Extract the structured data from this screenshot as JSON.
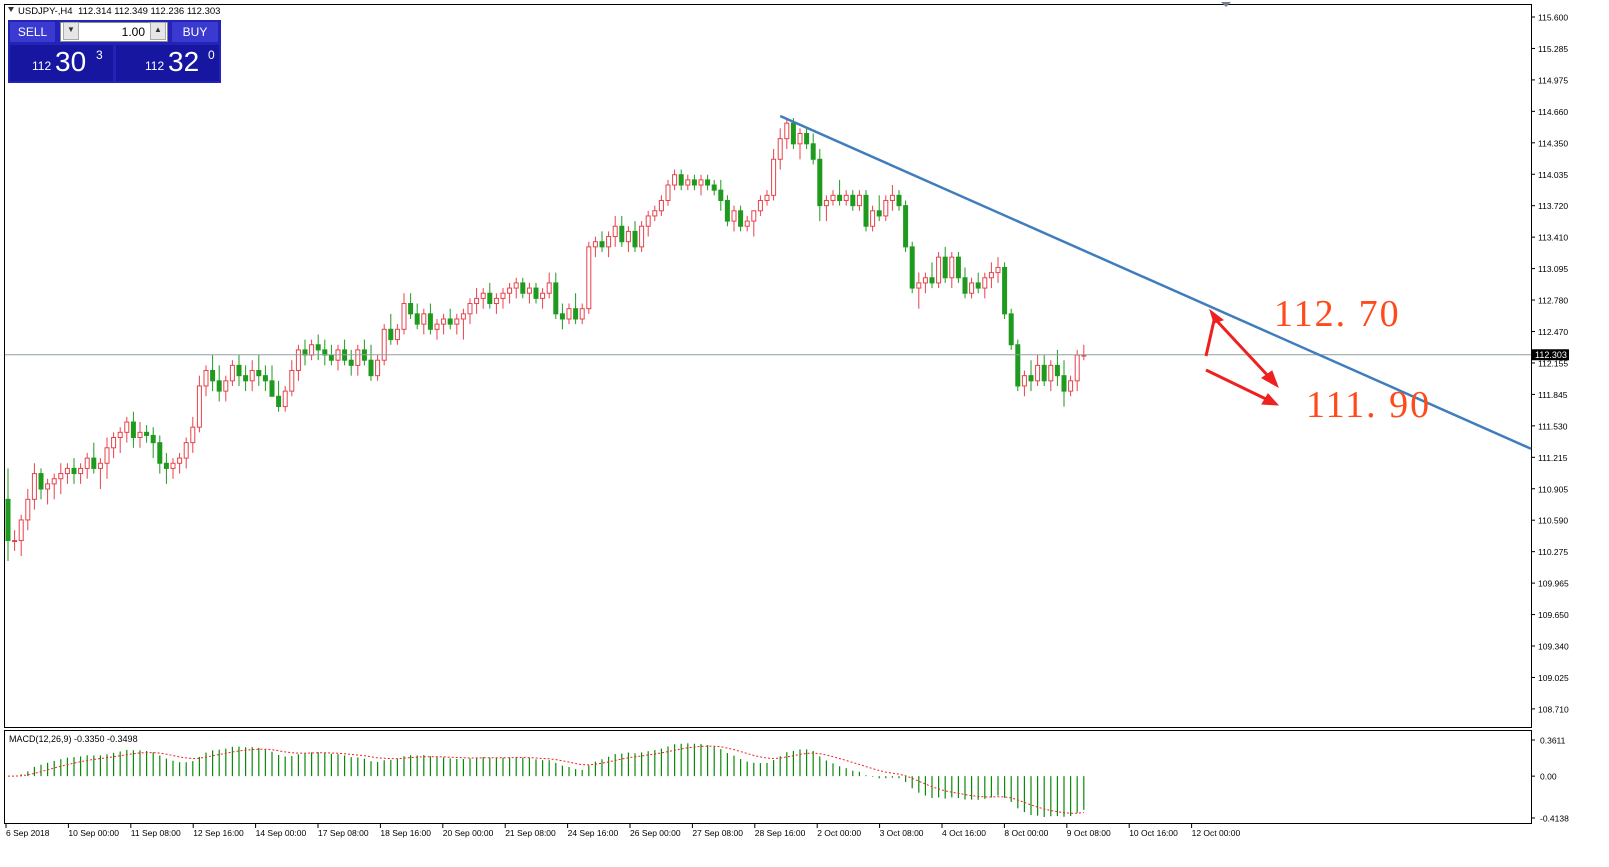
{
  "window": {
    "title": "USDJPY-,H4",
    "ohlc": "112.314 112.349 112.236 112.303"
  },
  "trade_panel": {
    "sell_label": "SELL",
    "buy_label": "BUY",
    "lot": "1.00",
    "sell_big": "112",
    "sell_pips": "30",
    "sell_sup": "3",
    "buy_big": "112",
    "buy_pips": "32",
    "buy_sup": "0"
  },
  "price_axis": {
    "labels": [
      "115.600",
      "115.285",
      "114.975",
      "114.660",
      "114.350",
      "114.035",
      "113.720",
      "113.410",
      "113.095",
      "112.780",
      "112.470",
      "112.155",
      "111.845",
      "111.530",
      "111.215",
      "110.905",
      "110.590",
      "110.275",
      "109.965",
      "109.650",
      "109.340",
      "109.025",
      "108.710"
    ],
    "current_price": "112.303"
  },
  "time_axis": {
    "labels": [
      "6 Sep 2018",
      "10 Sep 00:00",
      "11 Sep 08:00",
      "12 Sep 16:00",
      "14 Sep 00:00",
      "17 Sep 08:00",
      "18 Sep 16:00",
      "20 Sep 00:00",
      "21 Sep 08:00",
      "24 Sep 16:00",
      "26 Sep 00:00",
      "27 Sep 08:00",
      "28 Sep 16:00",
      "2 Oct 00:00",
      "3 Oct 08:00",
      "4 Oct 16:00",
      "8 Oct 00:00",
      "9 Oct 08:00",
      "10 Oct 16:00",
      "12 Oct 00:00"
    ]
  },
  "macd": {
    "label": "MACD(12,26,9) -0.3350 -0.3498",
    "axis_labels": [
      "0.3611",
      "0.00",
      "-0.4138"
    ]
  },
  "annotations": {
    "target_high": "112. 70",
    "target_low": "111. 90"
  },
  "colors": {
    "bull": "#e8414b",
    "bear": "#1e9a1e",
    "trendline": "#3f7dbd",
    "annotation": "#ff4a1a",
    "arrow": "#ee2020"
  },
  "chart_data": {
    "type": "candlestick",
    "symbol": "USDJPY-",
    "timeframe": "H4",
    "ylim": [
      108.71,
      115.6
    ],
    "candles": [
      [
        110.9,
        111.2,
        110.3,
        110.5
      ],
      [
        110.5,
        110.6,
        110.4,
        110.5
      ],
      [
        110.5,
        110.75,
        110.35,
        110.7
      ],
      [
        110.7,
        111.0,
        110.6,
        110.9
      ],
      [
        110.9,
        111.25,
        110.8,
        111.15
      ],
      [
        111.15,
        111.2,
        110.9,
        111.0
      ],
      [
        111.0,
        111.1,
        110.85,
        111.05
      ],
      [
        111.05,
        111.15,
        110.9,
        111.1
      ],
      [
        111.1,
        111.25,
        110.95,
        111.15
      ],
      [
        111.15,
        111.25,
        111.05,
        111.2
      ],
      [
        111.2,
        111.3,
        111.05,
        111.15
      ],
      [
        111.15,
        111.25,
        111.05,
        111.2
      ],
      [
        111.2,
        111.35,
        111.1,
        111.3
      ],
      [
        111.3,
        111.45,
        111.15,
        111.2
      ],
      [
        111.2,
        111.3,
        111.0,
        111.25
      ],
      [
        111.25,
        111.5,
        111.1,
        111.4
      ],
      [
        111.4,
        111.55,
        111.3,
        111.5
      ],
      [
        111.5,
        111.6,
        111.35,
        111.55
      ],
      [
        111.55,
        111.7,
        111.45,
        111.65
      ],
      [
        111.65,
        111.75,
        111.4,
        111.5
      ],
      [
        111.5,
        111.65,
        111.4,
        111.55
      ],
      [
        111.55,
        111.62,
        111.45,
        111.52
      ],
      [
        111.52,
        111.6,
        111.3,
        111.45
      ],
      [
        111.45,
        111.52,
        111.15,
        111.25
      ],
      [
        111.25,
        111.35,
        111.05,
        111.2
      ],
      [
        111.2,
        111.3,
        111.1,
        111.25
      ],
      [
        111.25,
        111.35,
        111.15,
        111.3
      ],
      [
        111.3,
        111.5,
        111.2,
        111.45
      ],
      [
        111.45,
        111.7,
        111.35,
        111.6
      ],
      [
        111.6,
        112.1,
        111.55,
        112.0
      ],
      [
        112.0,
        112.2,
        111.9,
        112.15
      ],
      [
        112.15,
        112.3,
        111.95,
        112.05
      ],
      [
        112.05,
        112.2,
        111.85,
        111.95
      ],
      [
        111.95,
        112.1,
        111.85,
        112.05
      ],
      [
        112.05,
        112.25,
        112.0,
        112.2
      ],
      [
        112.2,
        112.3,
        112.0,
        112.1
      ],
      [
        112.1,
        112.2,
        111.95,
        112.05
      ],
      [
        112.05,
        112.25,
        111.95,
        112.15
      ],
      [
        112.15,
        112.3,
        112.0,
        112.1
      ],
      [
        112.1,
        112.2,
        111.95,
        112.05
      ],
      [
        112.05,
        112.2,
        111.9,
        111.9
      ],
      [
        111.9,
        112.05,
        111.75,
        111.8
      ],
      [
        111.8,
        112.0,
        111.75,
        111.95
      ],
      [
        111.95,
        112.25,
        111.9,
        112.15
      ],
      [
        112.15,
        112.4,
        112.05,
        112.35
      ],
      [
        112.35,
        112.45,
        112.2,
        112.3
      ],
      [
        112.3,
        112.45,
        112.25,
        112.4
      ],
      [
        112.4,
        112.5,
        112.25,
        112.35
      ],
      [
        112.35,
        112.45,
        112.2,
        112.3
      ],
      [
        112.3,
        112.4,
        112.2,
        112.25
      ],
      [
        112.25,
        112.4,
        112.15,
        112.35
      ],
      [
        112.35,
        112.45,
        112.2,
        112.25
      ],
      [
        112.25,
        112.35,
        112.1,
        112.2
      ],
      [
        112.2,
        112.4,
        112.1,
        112.35
      ],
      [
        112.35,
        112.45,
        112.2,
        112.25
      ],
      [
        112.25,
        112.4,
        112.05,
        112.1
      ],
      [
        112.1,
        112.3,
        112.05,
        112.25
      ],
      [
        112.25,
        112.6,
        112.2,
        112.55
      ],
      [
        112.55,
        112.7,
        112.4,
        112.45
      ],
      [
        112.45,
        112.6,
        112.4,
        112.55
      ],
      [
        112.55,
        112.9,
        112.5,
        112.8
      ],
      [
        112.8,
        112.9,
        112.65,
        112.7
      ],
      [
        112.7,
        112.8,
        112.55,
        112.6
      ],
      [
        112.6,
        112.75,
        112.5,
        112.7
      ],
      [
        112.7,
        112.8,
        112.5,
        112.55
      ],
      [
        112.55,
        112.65,
        112.45,
        112.6
      ],
      [
        112.6,
        112.7,
        112.5,
        112.65
      ],
      [
        112.65,
        112.75,
        112.55,
        112.6
      ],
      [
        112.6,
        112.7,
        112.5,
        112.65
      ],
      [
        112.65,
        112.75,
        112.45,
        112.7
      ],
      [
        112.7,
        112.85,
        112.6,
        112.8
      ],
      [
        112.8,
        112.95,
        112.7,
        112.85
      ],
      [
        112.85,
        112.95,
        112.75,
        112.9
      ],
      [
        112.9,
        113.0,
        112.75,
        112.8
      ],
      [
        112.8,
        112.9,
        112.7,
        112.85
      ],
      [
        112.85,
        112.95,
        112.75,
        112.9
      ],
      [
        112.9,
        113.0,
        112.8,
        112.95
      ],
      [
        112.95,
        113.05,
        112.85,
        113.0
      ],
      [
        113.0,
        113.05,
        112.85,
        112.9
      ],
      [
        112.9,
        113.0,
        112.8,
        112.95
      ],
      [
        112.95,
        113.0,
        112.8,
        112.85
      ],
      [
        112.85,
        112.95,
        112.75,
        112.9
      ],
      [
        112.9,
        113.1,
        112.85,
        113.0
      ],
      [
        113.0,
        113.1,
        112.65,
        112.7
      ],
      [
        112.7,
        112.8,
        112.55,
        112.65
      ],
      [
        112.65,
        112.8,
        112.6,
        112.75
      ],
      [
        112.75,
        112.9,
        112.6,
        112.65
      ],
      [
        112.65,
        112.8,
        112.6,
        112.75
      ],
      [
        112.75,
        113.4,
        112.7,
        113.35
      ],
      [
        113.35,
        113.45,
        113.25,
        113.4
      ],
      [
        113.4,
        113.5,
        113.3,
        113.35
      ],
      [
        113.35,
        113.5,
        113.25,
        113.45
      ],
      [
        113.45,
        113.65,
        113.35,
        113.55
      ],
      [
        113.55,
        113.65,
        113.35,
        113.4
      ],
      [
        113.4,
        113.55,
        113.3,
        113.5
      ],
      [
        113.5,
        113.6,
        113.3,
        113.35
      ],
      [
        113.35,
        113.6,
        113.3,
        113.55
      ],
      [
        113.55,
        113.7,
        113.45,
        113.65
      ],
      [
        113.65,
        113.75,
        113.6,
        113.7
      ],
      [
        113.7,
        113.85,
        113.65,
        113.8
      ],
      [
        113.8,
        114.0,
        113.75,
        113.95
      ],
      [
        113.95,
        114.1,
        113.9,
        114.05
      ],
      [
        114.05,
        114.1,
        113.9,
        113.95
      ],
      [
        113.95,
        114.05,
        113.9,
        114.0
      ],
      [
        114.0,
        114.05,
        113.9,
        113.95
      ],
      [
        113.95,
        114.05,
        113.85,
        114.0
      ],
      [
        114.0,
        114.05,
        113.9,
        113.95
      ],
      [
        113.95,
        114.0,
        113.85,
        113.9
      ],
      [
        113.9,
        114.0,
        113.7,
        113.8
      ],
      [
        113.8,
        113.85,
        113.55,
        113.6
      ],
      [
        113.6,
        113.75,
        113.5,
        113.7
      ],
      [
        113.7,
        113.75,
        113.5,
        113.55
      ],
      [
        113.55,
        113.65,
        113.5,
        113.6
      ],
      [
        113.6,
        113.7,
        113.45,
        113.7
      ],
      [
        113.7,
        113.85,
        113.65,
        113.8
      ],
      [
        113.8,
        113.9,
        113.75,
        113.85
      ],
      [
        113.85,
        114.3,
        113.8,
        114.2
      ],
      [
        114.2,
        114.5,
        114.1,
        114.4
      ],
      [
        114.4,
        114.6,
        114.3,
        114.55
      ],
      [
        114.55,
        114.6,
        114.3,
        114.35
      ],
      [
        114.35,
        114.5,
        114.2,
        114.45
      ],
      [
        114.45,
        114.5,
        114.3,
        114.35
      ],
      [
        114.35,
        114.45,
        114.15,
        114.2
      ],
      [
        114.2,
        114.3,
        113.6,
        113.75
      ],
      [
        113.75,
        113.85,
        113.6,
        113.8
      ],
      [
        113.8,
        113.9,
        113.75,
        113.85
      ],
      [
        113.85,
        114.0,
        113.75,
        113.8
      ],
      [
        113.8,
        113.9,
        113.75,
        113.85
      ],
      [
        113.85,
        113.9,
        113.7,
        113.75
      ],
      [
        113.75,
        113.9,
        113.7,
        113.85
      ],
      [
        113.85,
        113.9,
        113.5,
        113.55
      ],
      [
        113.55,
        113.75,
        113.5,
        113.7
      ],
      [
        113.7,
        113.85,
        113.6,
        113.65
      ],
      [
        113.65,
        113.85,
        113.6,
        113.8
      ],
      [
        113.8,
        113.95,
        113.7,
        113.85
      ],
      [
        113.85,
        113.9,
        113.7,
        113.75
      ],
      [
        113.75,
        113.8,
        113.3,
        113.35
      ],
      [
        113.35,
        113.4,
        112.9,
        112.95
      ],
      [
        112.95,
        113.1,
        112.75,
        113.0
      ],
      [
        113.0,
        113.1,
        112.9,
        113.05
      ],
      [
        113.05,
        113.2,
        112.95,
        113.0
      ],
      [
        113.0,
        113.3,
        112.95,
        113.25
      ],
      [
        113.25,
        113.35,
        113.0,
        113.05
      ],
      [
        113.05,
        113.3,
        112.95,
        113.25
      ],
      [
        113.25,
        113.3,
        113.0,
        113.05
      ],
      [
        113.05,
        113.15,
        112.85,
        112.9
      ],
      [
        112.9,
        113.05,
        112.85,
        113.0
      ],
      [
        113.0,
        113.1,
        112.9,
        112.95
      ],
      [
        112.95,
        113.1,
        112.85,
        113.05
      ],
      [
        113.05,
        113.2,
        112.95,
        113.1
      ],
      [
        113.1,
        113.25,
        113.0,
        113.15
      ],
      [
        113.15,
        113.2,
        112.65,
        112.7
      ],
      [
        112.7,
        112.75,
        112.35,
        112.4
      ],
      [
        112.4,
        112.45,
        111.95,
        112.0
      ],
      [
        112.0,
        112.15,
        111.9,
        112.1
      ],
      [
        112.1,
        112.25,
        111.95,
        112.05
      ],
      [
        112.05,
        112.3,
        112.0,
        112.2
      ],
      [
        112.2,
        112.3,
        112.0,
        112.05
      ],
      [
        112.05,
        112.25,
        111.95,
        112.2
      ],
      [
        112.2,
        112.35,
        112.0,
        112.1
      ],
      [
        112.1,
        112.25,
        111.8,
        111.95
      ],
      [
        111.95,
        112.1,
        111.9,
        112.05
      ],
      [
        112.05,
        112.35,
        111.95,
        112.3
      ],
      [
        112.3,
        112.4,
        112.25,
        112.3
      ]
    ],
    "trendline": {
      "from": {
        "bar": 117,
        "price": 114.62
      },
      "to": "extends to right edge"
    },
    "macd": {
      "fast": 12,
      "slow": 26,
      "signal": 9,
      "main": -0.335,
      "signal_value": -0.3498,
      "ylim": [
        -0.4138,
        0.3611
      ]
    }
  }
}
